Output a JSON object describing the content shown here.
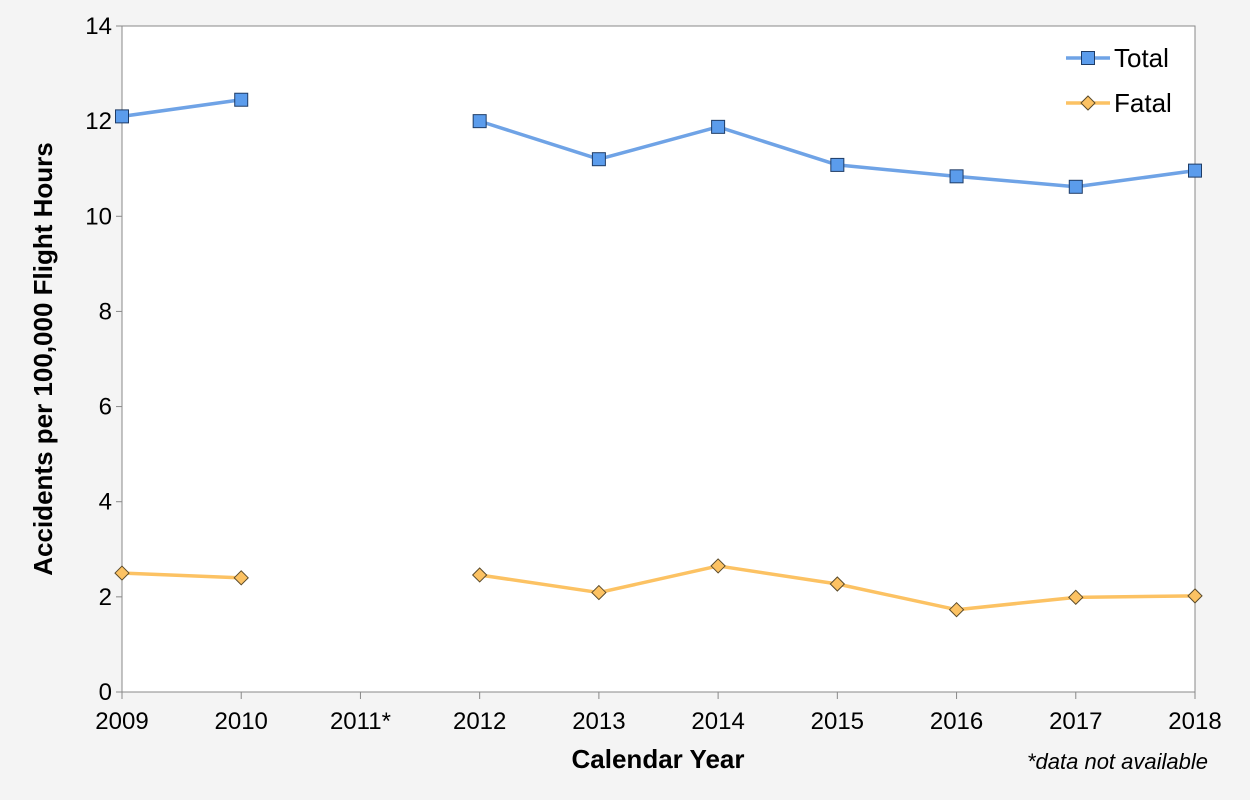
{
  "chart_data": {
    "type": "line",
    "title": "",
    "xlabel": "Calendar Year",
    "ylabel": "Accidents per 100,000 Flight Hours",
    "categories": [
      "2009",
      "2010",
      "2011*",
      "2012",
      "2013",
      "2014",
      "2015",
      "2016",
      "2017",
      "2018"
    ],
    "ylim": [
      0,
      14
    ],
    "yticks": [
      0,
      2,
      4,
      6,
      8,
      10,
      12,
      14
    ],
    "grid": false,
    "legend_position": "top-right",
    "footnote": "*data not available",
    "series": [
      {
        "name": "Total",
        "color": "#6fa3e6",
        "marker": "square",
        "marker_fill": "#5b9cec",
        "values": [
          12.1,
          12.45,
          null,
          12.0,
          11.2,
          11.88,
          11.08,
          10.84,
          10.62,
          10.96
        ]
      },
      {
        "name": "Fatal",
        "color": "#fcc263",
        "marker": "diamond",
        "marker_fill": "#fcc263",
        "values": [
          2.5,
          2.4,
          null,
          2.46,
          2.09,
          2.65,
          2.27,
          1.73,
          1.99,
          2.02
        ]
      }
    ]
  }
}
